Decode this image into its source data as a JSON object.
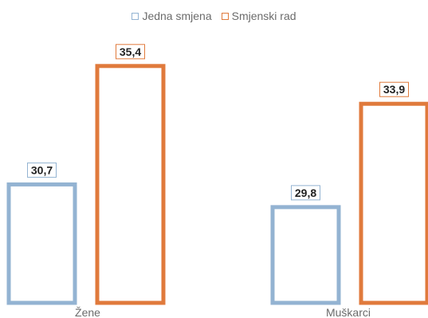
{
  "chart_data": {
    "type": "bar",
    "categories": [
      "Žene",
      "Muškarci"
    ],
    "series": [
      {
        "name": "Jedna smjena",
        "values": [
          30.7,
          29.8
        ],
        "color": "#93B3D2"
      },
      {
        "name": "Smjenski rad",
        "values": [
          35.4,
          33.9
        ],
        "color": "#E07A3C"
      }
    ],
    "value_labels": [
      [
        "30,7",
        "29,8"
      ],
      [
        "35,4",
        "33,9"
      ]
    ],
    "legend_position": "top-center",
    "grid": false,
    "ylim": [
      26.0,
      35.9
    ]
  }
}
